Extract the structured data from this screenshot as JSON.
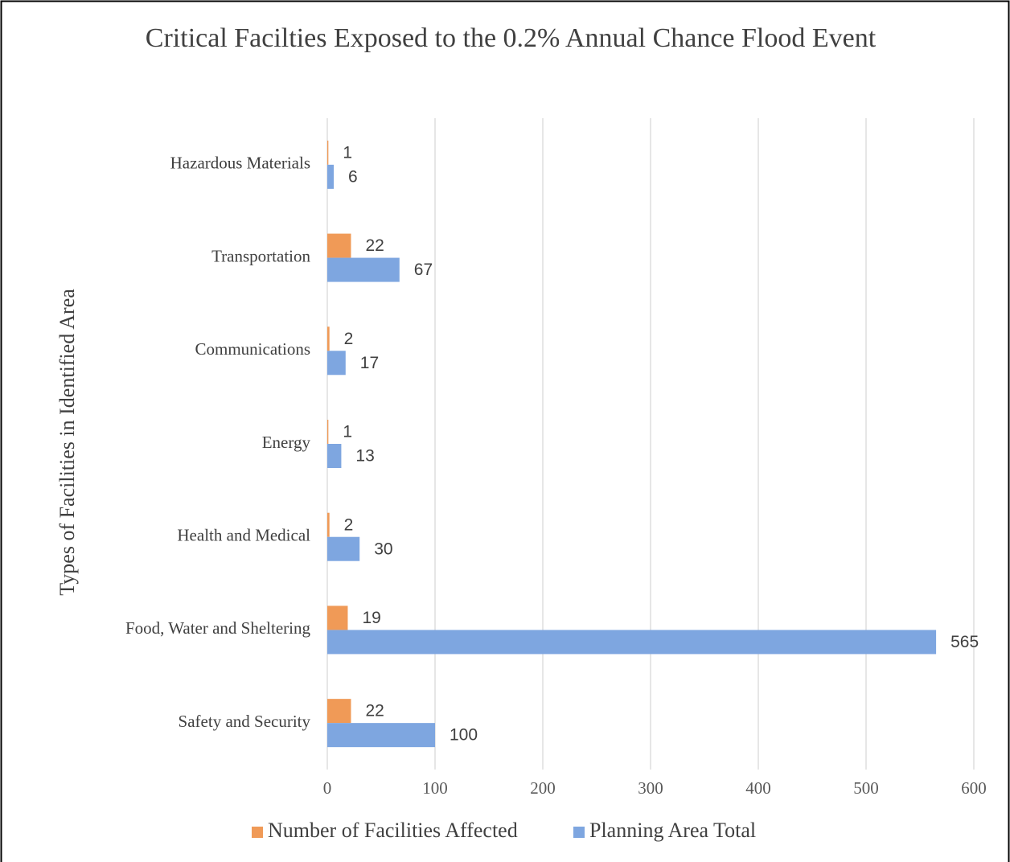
{
  "chart_data": {
    "type": "bar",
    "orientation": "horizontal",
    "title": "Critical Facilties Exposed to the 0.2% Annual Chance Flood Event",
    "y_label": "Types of Facilities in Identified Area",
    "categories": [
      "Hazardous Materials",
      "Transportation",
      "Communications",
      "Energy",
      "Health and Medical",
      "Food, Water and Sheltering",
      "Safety and Security"
    ],
    "series": [
      {
        "name": "Number of Facilities Affected",
        "color": "#f09a57",
        "values": [
          1,
          22,
          2,
          1,
          2,
          19,
          22
        ]
      },
      {
        "name": "Planning Area Total",
        "color": "#7ea6e0",
        "values": [
          6,
          67,
          17,
          13,
          30,
          565,
          100
        ]
      }
    ],
    "xlim": [
      0,
      600
    ],
    "xticks": [
      0,
      100,
      200,
      300,
      400,
      500,
      600
    ],
    "grid": true,
    "legend": "bottom"
  }
}
